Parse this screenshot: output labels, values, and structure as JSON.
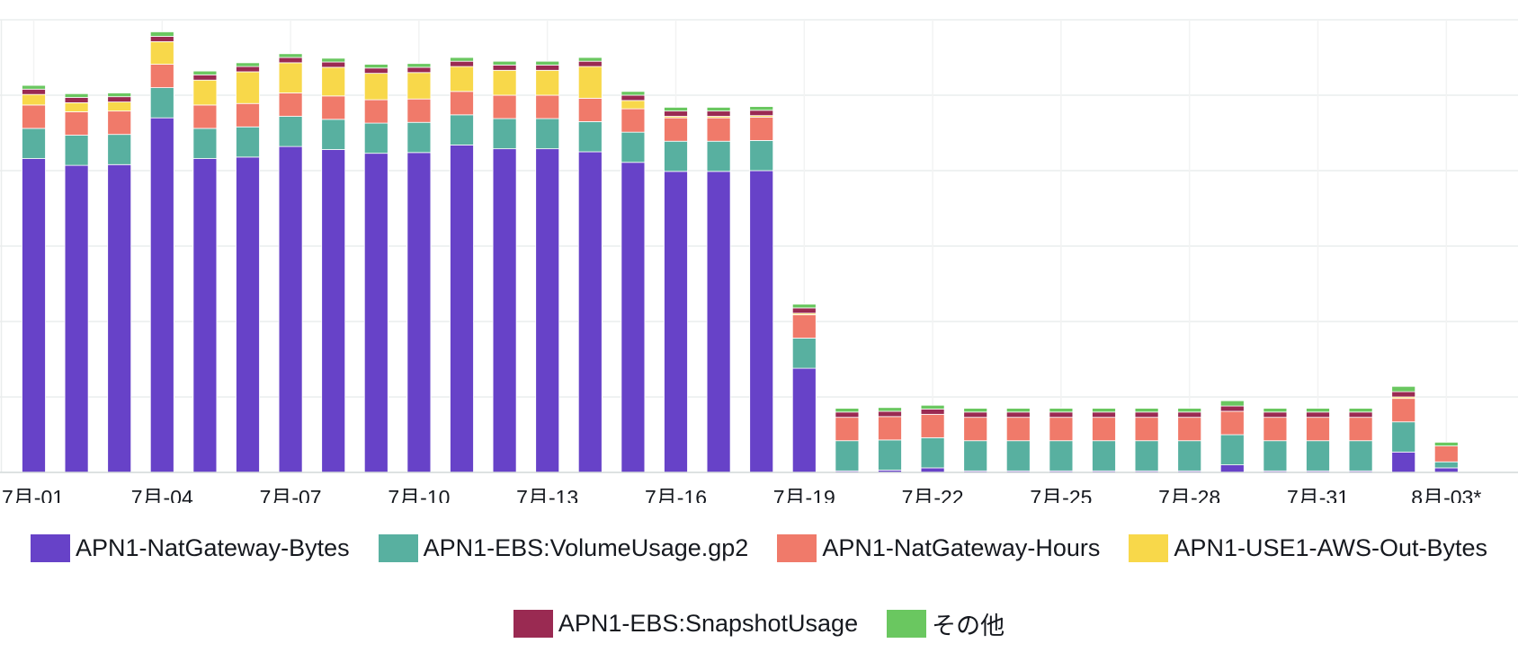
{
  "chart_data": {
    "type": "bar",
    "stacked": true,
    "grid": true,
    "legend_position": "bottom",
    "x_tick_labels": [
      "7月-01",
      "7月-04",
      "7月-07",
      "7月-10",
      "7月-13",
      "7月-16",
      "7月-19",
      "7月-22",
      "7月-25",
      "7月-28",
      "7月-31",
      "8月-03*"
    ],
    "ylim": [
      0,
      6
    ],
    "series": [
      {
        "name": "APN1-NatGateway-Bytes",
        "color": "#6742c8",
        "values": [
          4.16,
          4.07,
          4.08,
          4.7,
          4.16,
          4.18,
          4.32,
          4.28,
          4.23,
          4.24,
          4.34,
          4.29,
          4.29,
          4.25,
          4.11,
          3.99,
          3.99,
          4.0,
          1.38,
          0.02,
          0.03,
          0.06,
          0.02,
          0.02,
          0.02,
          0.02,
          0.02,
          0.02,
          0.1,
          0.02,
          0.02,
          0.02,
          0.27,
          0.06
        ]
      },
      {
        "name": "APN1-EBS:VolumeUsage.gp2",
        "color": "#58b0a0",
        "values": [
          0.4,
          0.4,
          0.4,
          0.4,
          0.4,
          0.4,
          0.4,
          0.4,
          0.4,
          0.4,
          0.4,
          0.4,
          0.4,
          0.4,
          0.4,
          0.4,
          0.4,
          0.4,
          0.4,
          0.4,
          0.4,
          0.4,
          0.4,
          0.4,
          0.4,
          0.4,
          0.4,
          0.4,
          0.4,
          0.4,
          0.4,
          0.4,
          0.4,
          0.08
        ]
      },
      {
        "name": "APN1-NatGateway-Hours",
        "color": "#f07a6a",
        "values": [
          0.31,
          0.31,
          0.31,
          0.31,
          0.31,
          0.31,
          0.31,
          0.31,
          0.31,
          0.31,
          0.31,
          0.31,
          0.31,
          0.31,
          0.31,
          0.31,
          0.31,
          0.31,
          0.31,
          0.31,
          0.31,
          0.31,
          0.31,
          0.31,
          0.31,
          0.31,
          0.31,
          0.31,
          0.31,
          0.31,
          0.31,
          0.31,
          0.31,
          0.21
        ]
      },
      {
        "name": "APN1-USE1-AWS-Out-Bytes",
        "color": "#f8d84a",
        "values": [
          0.14,
          0.12,
          0.12,
          0.3,
          0.33,
          0.42,
          0.4,
          0.38,
          0.35,
          0.35,
          0.33,
          0.33,
          0.33,
          0.42,
          0.11,
          0.02,
          0.02,
          0.02,
          0.02,
          0.0,
          0.0,
          0.0,
          0.0,
          0.0,
          0.0,
          0.0,
          0.0,
          0.0,
          0.0,
          0.0,
          0.0,
          0.0,
          0.02,
          0.0
        ]
      },
      {
        "name": "APN1-EBS:SnapshotUsage",
        "color": "#9a2a52",
        "values": [
          0.07,
          0.07,
          0.07,
          0.07,
          0.07,
          0.07,
          0.07,
          0.07,
          0.07,
          0.07,
          0.07,
          0.07,
          0.07,
          0.07,
          0.07,
          0.07,
          0.07,
          0.07,
          0.07,
          0.07,
          0.07,
          0.07,
          0.07,
          0.07,
          0.07,
          0.07,
          0.07,
          0.07,
          0.07,
          0.07,
          0.07,
          0.07,
          0.07,
          0.0
        ]
      },
      {
        "name": "その他",
        "color": "#6ac760",
        "values": [
          0.05,
          0.05,
          0.05,
          0.06,
          0.05,
          0.05,
          0.05,
          0.05,
          0.05,
          0.05,
          0.05,
          0.05,
          0.05,
          0.05,
          0.05,
          0.05,
          0.05,
          0.05,
          0.05,
          0.05,
          0.05,
          0.05,
          0.05,
          0.05,
          0.05,
          0.05,
          0.05,
          0.05,
          0.07,
          0.05,
          0.05,
          0.05,
          0.07,
          0.05
        ]
      }
    ]
  },
  "legend": {
    "row1": [
      {
        "label": "APN1-NatGateway-Bytes",
        "color": "#6742c8"
      },
      {
        "label": "APN1-EBS:VolumeUsage.gp2",
        "color": "#58b0a0"
      },
      {
        "label": "APN1-NatGateway-Hours",
        "color": "#f07a6a"
      },
      {
        "label": "APN1-USE1-AWS-Out-Bytes",
        "color": "#f8d84a"
      }
    ],
    "row2": [
      {
        "label": "APN1-EBS:SnapshotUsage",
        "color": "#9a2a52"
      },
      {
        "label": "その他",
        "color": "#6ac760"
      }
    ]
  }
}
